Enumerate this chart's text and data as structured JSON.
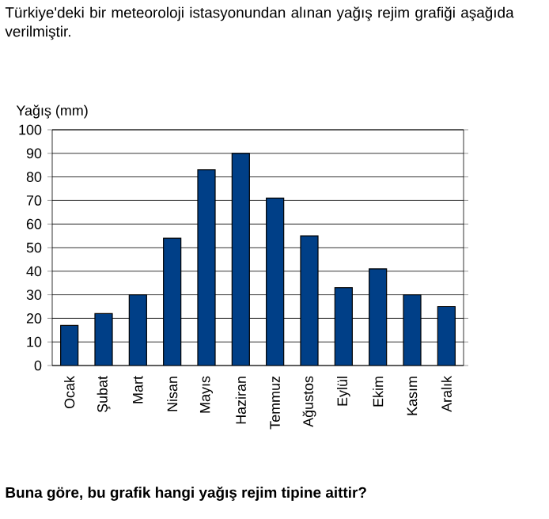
{
  "chart_data": {
    "type": "bar",
    "title": "Türkiye'deki bir meteoroloji istasyonundan alınan yağış rejim grafiği aşağıda verilmiştir.",
    "ylabel": "Yağış (mm)",
    "categories": [
      "Ocak",
      "Şubat",
      "Mart",
      "Nisan",
      "Mayıs",
      "Haziran",
      "Temmuz",
      "Ağustos",
      "Eylül",
      "Ekim",
      "Kasım",
      "Aralık"
    ],
    "values": [
      17,
      22,
      30,
      54,
      83,
      90,
      71,
      55,
      33,
      41,
      30,
      25
    ],
    "color": "#003f87",
    "ylim": [
      0,
      100
    ],
    "yticks": [
      0,
      10,
      20,
      30,
      40,
      50,
      60,
      70,
      80,
      90,
      100
    ],
    "grid": "y",
    "annotations": [
      "Buna göre, bu grafik hangi yağış rejim tipine aittir?"
    ]
  }
}
